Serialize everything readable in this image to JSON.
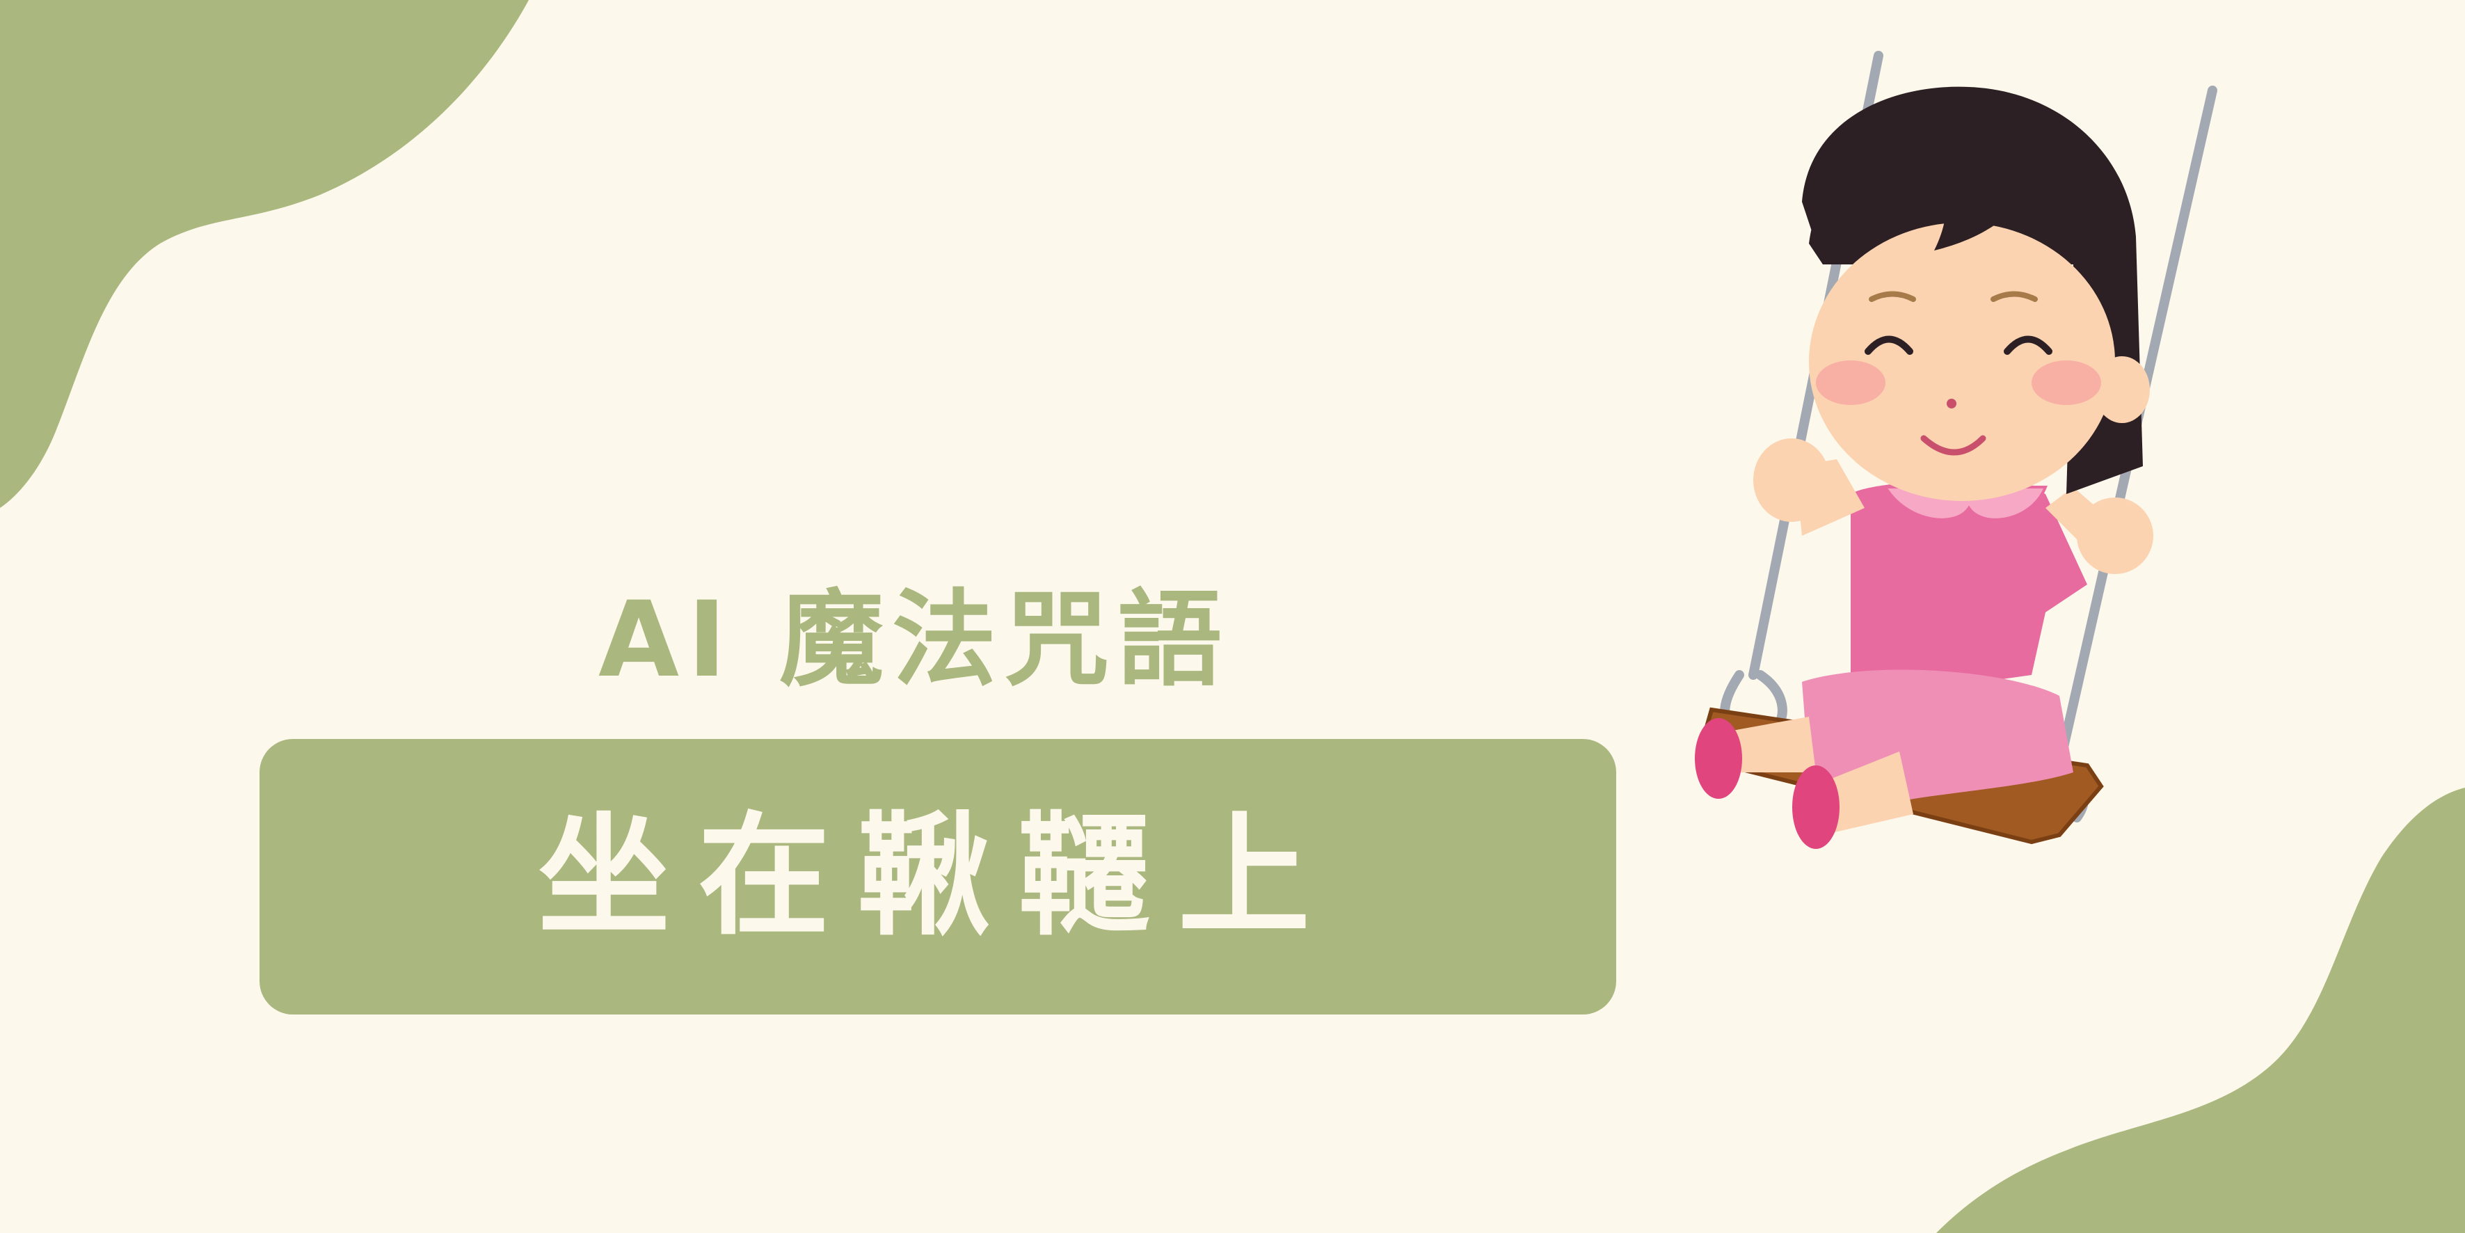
{
  "poster": {
    "subtitle": "AI 魔法咒語",
    "title": "坐在鞦韆上"
  },
  "illustration": {
    "subject": "girl-on-swing"
  },
  "colors": {
    "background": "#fdf8ec",
    "accent_green": "#aab77e",
    "title_text": "#fdf8ec",
    "hair": "#2c2024",
    "skin": "#fcd3b0",
    "dress": "#e86ba0",
    "dress_light": "#f08fb6",
    "collar": "#f7a8c4",
    "shoes": "#e0457e",
    "rope": "#a3a9b3",
    "seat": "#a05a22"
  }
}
